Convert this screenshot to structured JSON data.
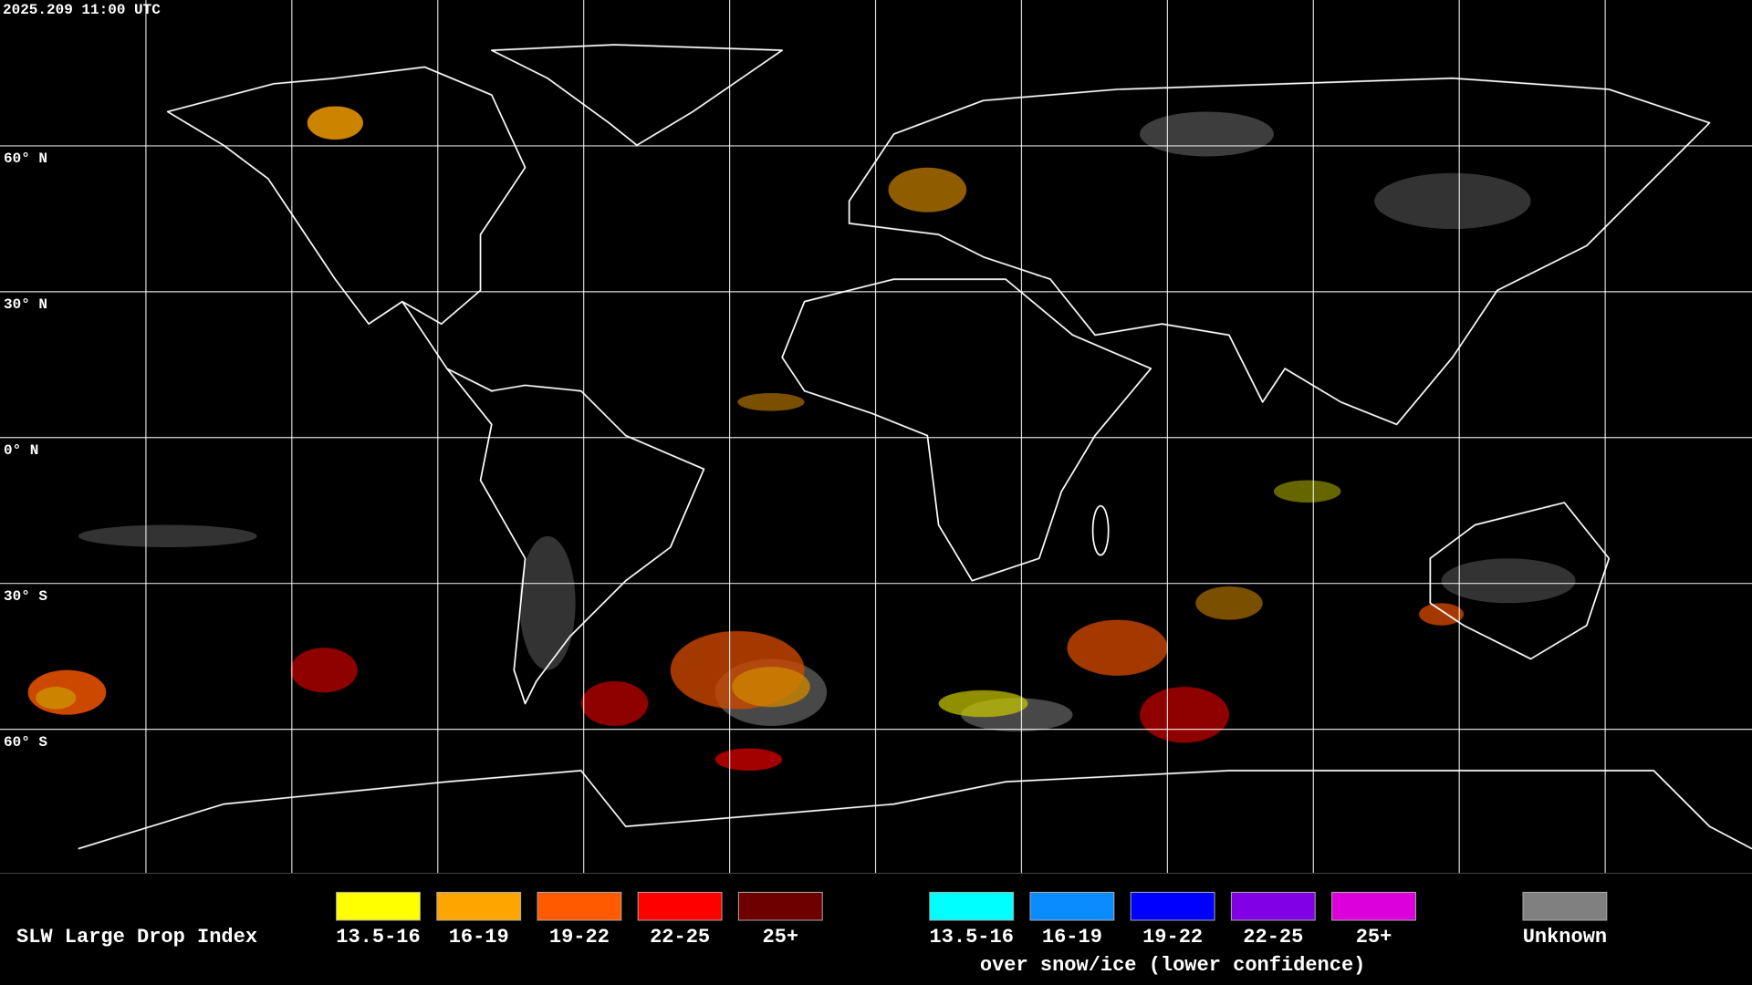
{
  "header": {
    "timestamp": "2025.209 11:00 UTC"
  },
  "map": {
    "latitude_labels": [
      "60° N",
      "30° N",
      "0° N",
      "30° S",
      "60° S"
    ]
  },
  "legend": {
    "title": "SLW Large Drop Index",
    "groups": [
      {
        "items": [
          {
            "label": "13.5-16",
            "color": "#ffff00"
          },
          {
            "label": "16-19",
            "color": "#ffa500"
          },
          {
            "label": "19-22",
            "color": "#ff5a00"
          },
          {
            "label": "22-25",
            "color": "#ff0000"
          },
          {
            "label": "25+",
            "color": "#6e0000"
          }
        ]
      },
      {
        "items": [
          {
            "label": "13.5-16",
            "color": "#00ffff"
          },
          {
            "label": "16-19",
            "color": "#0a8cff"
          },
          {
            "label": "19-22",
            "color": "#0000ff"
          },
          {
            "label": "22-25",
            "color": "#8200e6"
          },
          {
            "label": "25+",
            "color": "#dc00dc"
          }
        ],
        "caption": "over snow/ice (lower confidence)"
      },
      {
        "items": [
          {
            "label": "Unknown",
            "color": "#808080"
          }
        ]
      }
    ]
  }
}
